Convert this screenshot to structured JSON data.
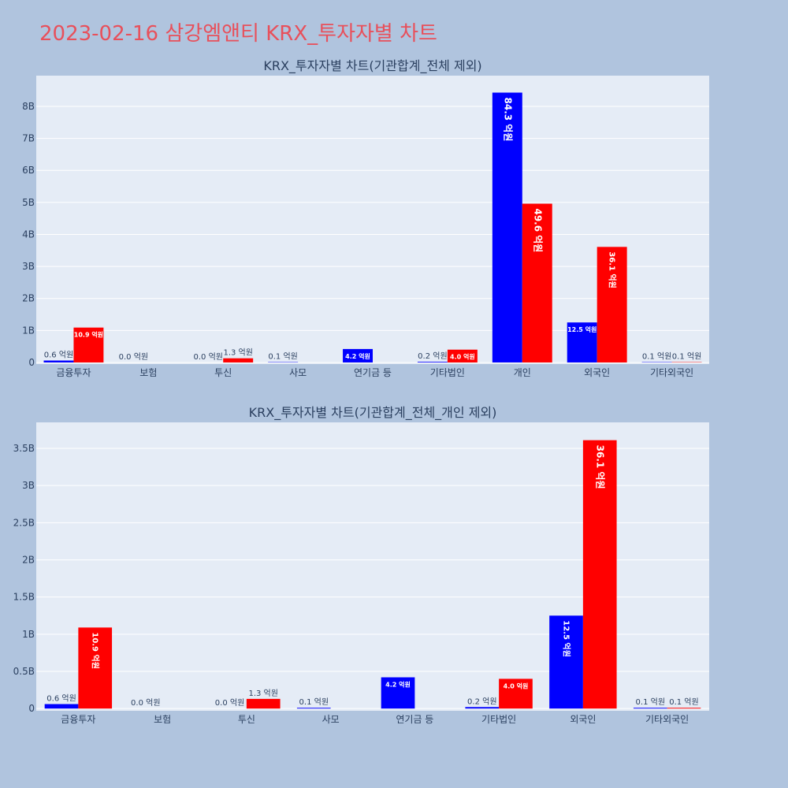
{
  "page_title": "2023-02-16 삼강엠앤티 KRX_투자자별 차트",
  "colors": {
    "buy": "#0000ff",
    "sell": "#ff0000"
  },
  "chart_data": [
    {
      "type": "bar",
      "title": "KRX_투자자별 차트(기관합계_전체 제외)",
      "categories": [
        "금융투자",
        "보험",
        "투신",
        "사모",
        "연기금 등",
        "기타법인",
        "개인",
        "외국인",
        "기타외국인"
      ],
      "series": [
        {
          "values": [
            60000000,
            0,
            0,
            10000000,
            420000000,
            20000000,
            8430000000,
            1250000000,
            10000000
          ],
          "labels": [
            "0.6 억원",
            "0.0 억원",
            "0.0 억원",
            "0.1 억원",
            "4.2 억원",
            "0.2 억원",
            "84.3 억원",
            "12.5 억원",
            "0.1 억원"
          ]
        },
        {
          "values": [
            1090000000,
            0,
            130000000,
            0,
            0,
            400000000,
            4960000000,
            3610000000,
            10000000
          ],
          "labels": [
            "10.9 억원",
            "",
            "1.3 억원",
            "",
            "",
            "4.0 억원",
            "49.6 억원",
            "36.1 억원",
            "0.1 억원"
          ]
        }
      ],
      "yticks": [
        0,
        1000000000,
        2000000000,
        3000000000,
        4000000000,
        5000000000,
        6000000000,
        7000000000,
        8000000000
      ],
      "ytick_labels": [
        "0",
        "1B",
        "2B",
        "3B",
        "4B",
        "5B",
        "6B",
        "7B",
        "8B"
      ],
      "ylim": [
        -50000000,
        8960000000
      ]
    },
    {
      "type": "bar",
      "title": "KRX_투자자별 차트(기관합계_전체_개인 제외)",
      "categories": [
        "금융투자",
        "보험",
        "투신",
        "사모",
        "연기금 등",
        "기타법인",
        "외국인",
        "기타외국인"
      ],
      "series": [
        {
          "values": [
            60000000,
            0,
            0,
            10000000,
            420000000,
            20000000,
            1250000000,
            10000000
          ],
          "labels": [
            "0.6 억원",
            "0.0 억원",
            "0.0 억원",
            "0.1 억원",
            "4.2 억원",
            "0.2 억원",
            "12.5 억원",
            "0.1 억원"
          ]
        },
        {
          "values": [
            1090000000,
            0,
            130000000,
            0,
            0,
            400000000,
            3610000000,
            10000000
          ],
          "labels": [
            "10.9 억원",
            "",
            "1.3 억원",
            "",
            "",
            "4.0 억원",
            "36.1 억원",
            "0.1 억원"
          ]
        }
      ],
      "yticks": [
        0,
        500000000,
        1000000000,
        1500000000,
        2000000000,
        2500000000,
        3000000000,
        3500000000
      ],
      "ytick_labels": [
        "0",
        "0.5B",
        "1B",
        "1.5B",
        "2B",
        "2.5B",
        "3B",
        "3.5B"
      ],
      "ylim": [
        -30000000,
        3850000000
      ]
    }
  ]
}
